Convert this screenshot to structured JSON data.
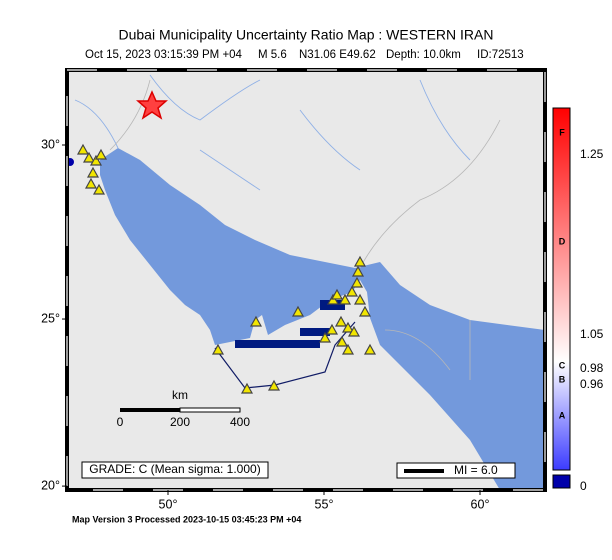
{
  "header": {
    "title": "Dubai Municipality Uncertainty Ratio Map : WESTERN IRAN",
    "subtitle": [
      "Oct 15, 2023 03:15:39 PM +04",
      "M 5.6",
      "N31.06 E49.62",
      "Depth: 10.0km",
      "ID:72513"
    ]
  },
  "map": {
    "lon_ticks": [
      {
        "value": 50,
        "label": "50°"
      },
      {
        "value": 55,
        "label": "55°"
      },
      {
        "value": 60,
        "label": "60°"
      }
    ],
    "lat_ticks": [
      {
        "value": 30,
        "label": "30°"
      },
      {
        "value": 25,
        "label": "25°"
      },
      {
        "value": 20,
        "label": "20°"
      }
    ],
    "scale_bar": {
      "unit": "km",
      "labels": [
        "0",
        "200",
        "400"
      ]
    },
    "grade": "GRADE: C (Mean sigma: 1.000)",
    "legend": "MI = 6.0"
  },
  "colorbar": {
    "values": [
      "1.25",
      "1.05",
      "0.98",
      "0.96",
      "0"
    ],
    "grades": [
      "F",
      "D",
      "C",
      "B",
      "A"
    ]
  },
  "footer": "Map Version 3 Processed 2023-10-15 03:45:23 PM +04"
}
